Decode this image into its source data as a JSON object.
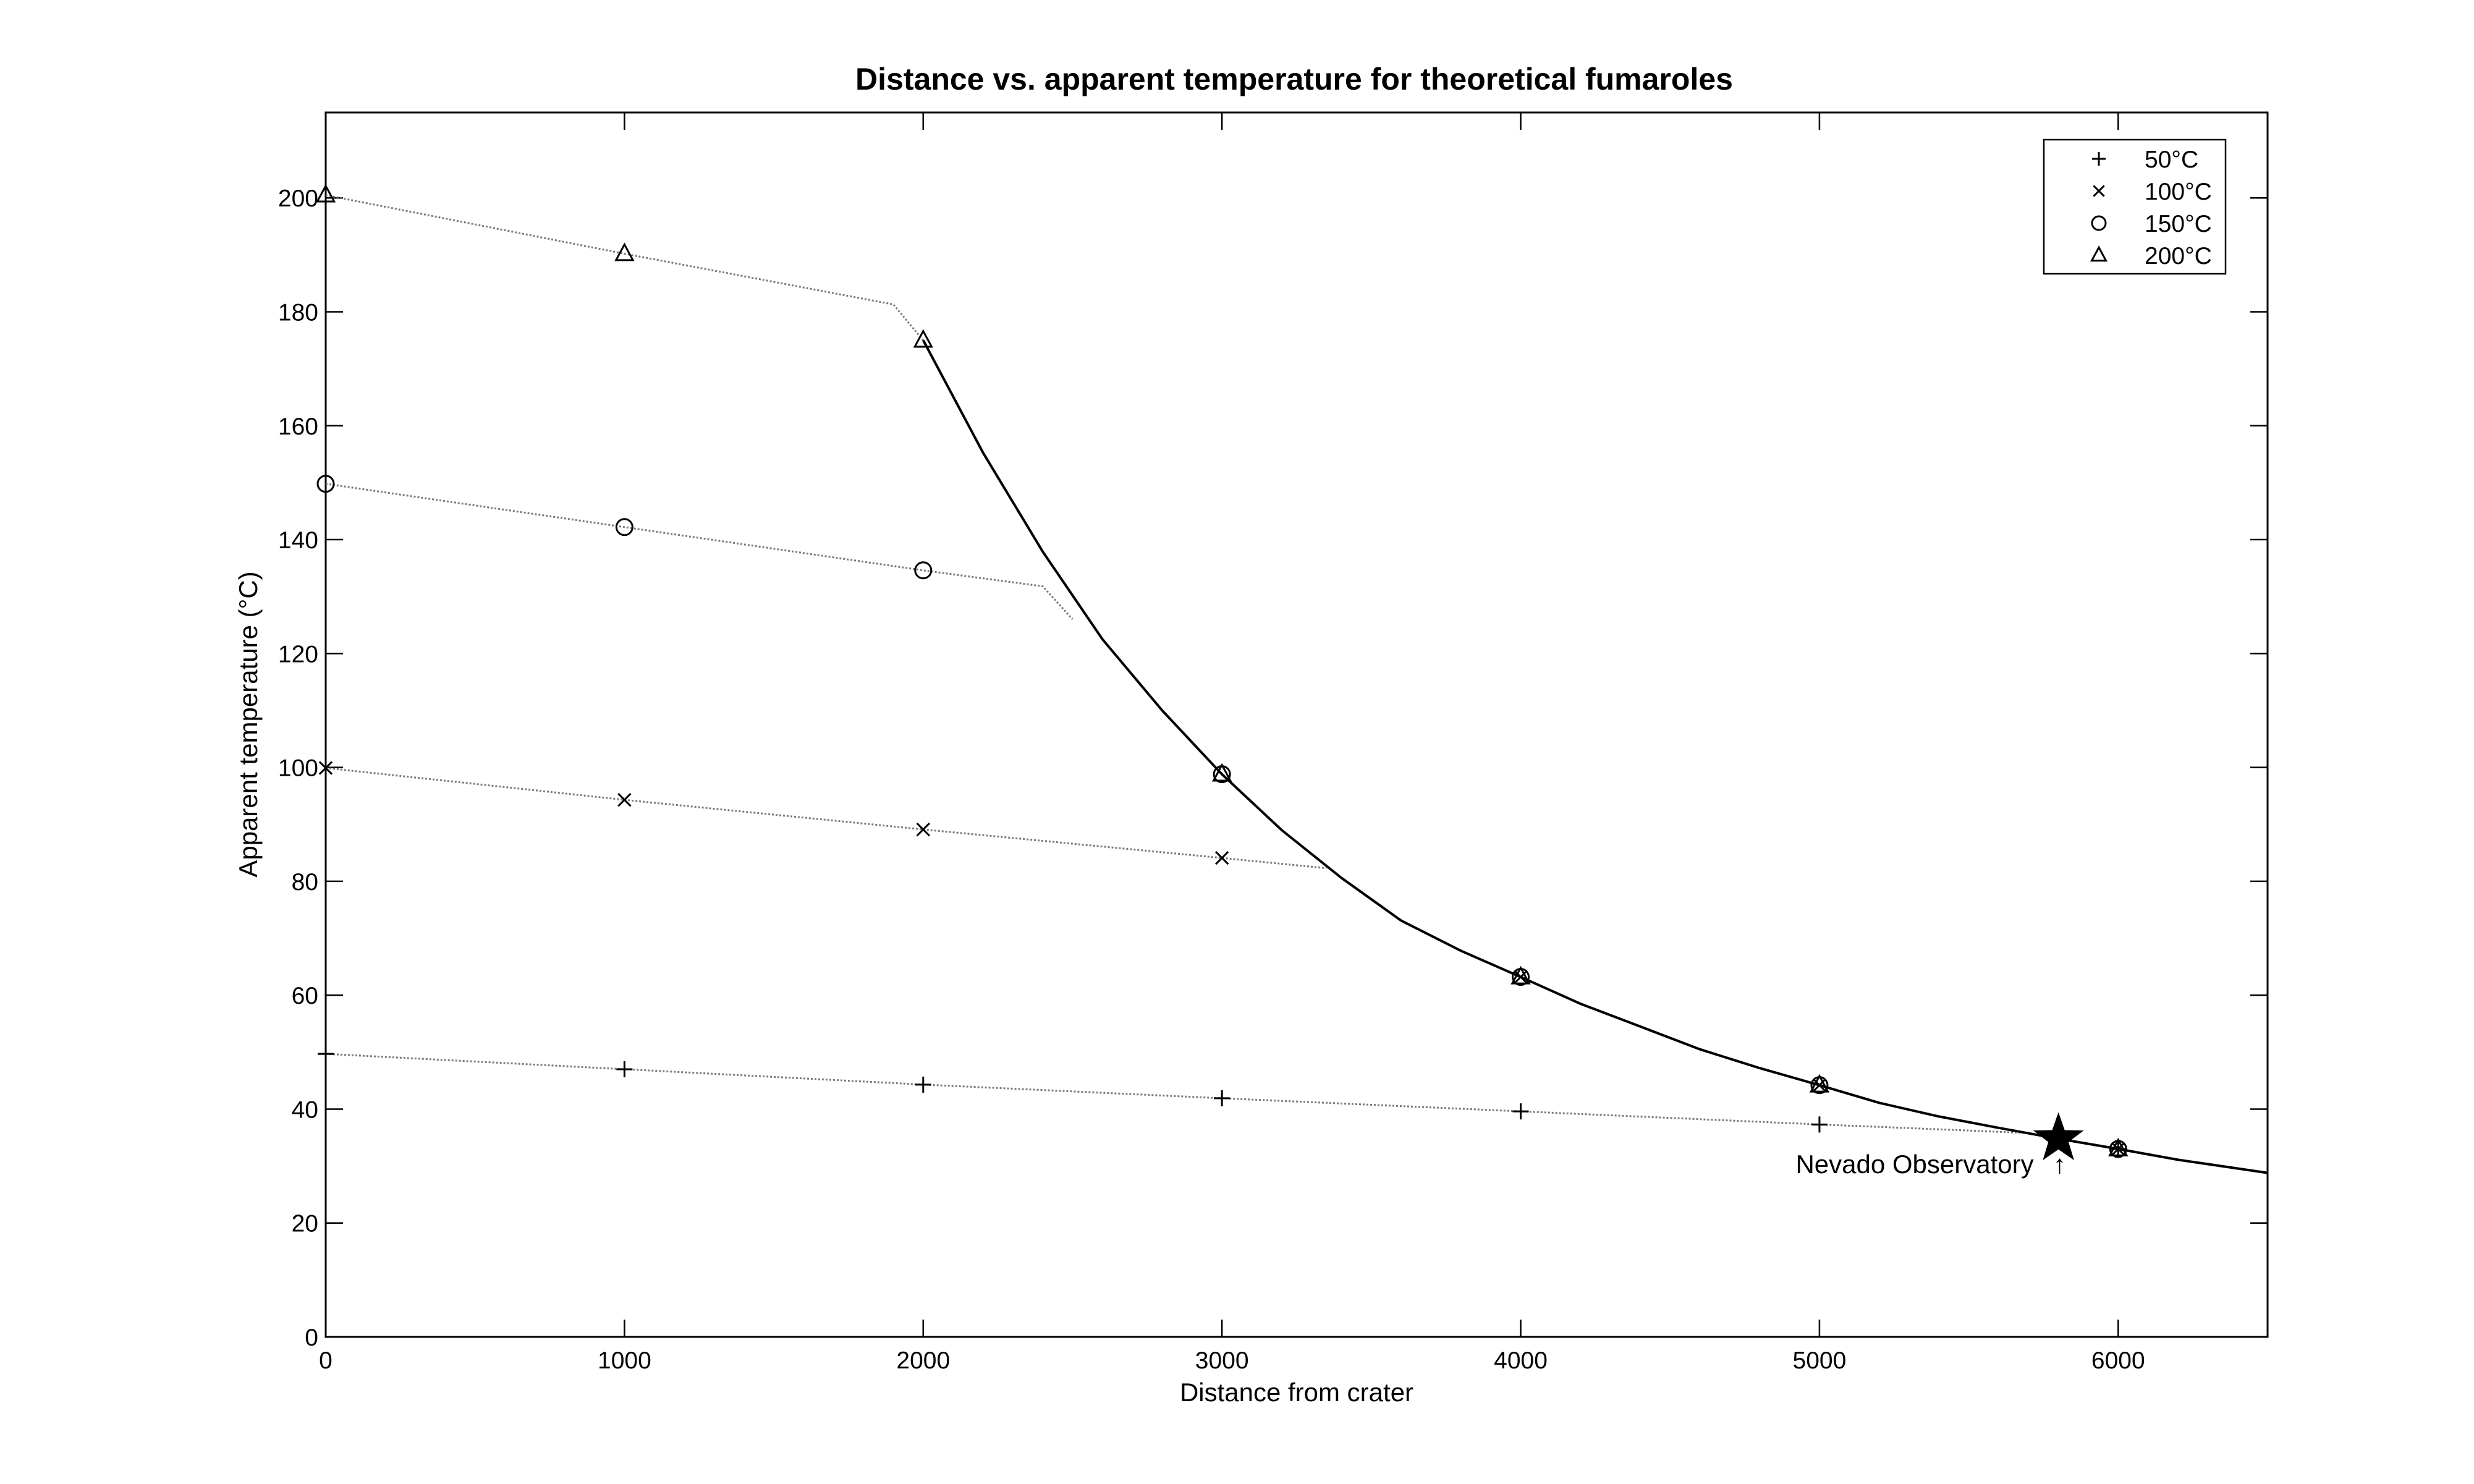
{
  "chart_data": {
    "type": "line",
    "title": "Distance vs. apparent temperature for theoretical fumaroles",
    "xlabel": "Distance from crater",
    "ylabel": "Apparent temperature (°C)",
    "xlim": [
      0,
      6500
    ],
    "ylim": [
      0,
      215
    ],
    "xticks": [
      0,
      1000,
      2000,
      3000,
      4000,
      5000,
      6000
    ],
    "yticks": [
      0,
      20,
      40,
      60,
      80,
      100,
      120,
      140,
      160,
      180,
      200
    ],
    "grid": false,
    "legend_position": "top-right",
    "series": [
      {
        "name": "50°C",
        "marker": "plus",
        "x": [
          0,
          1000,
          2000,
          3000,
          4000,
          5000,
          6000
        ],
        "y": [
          49.7,
          47.0,
          44.3,
          41.9,
          39.6,
          37.3,
          33.0
        ]
      },
      {
        "name": "100°C",
        "marker": "x",
        "x": [
          0,
          1000,
          2000,
          3000,
          4000,
          5000,
          6000
        ],
        "y": [
          99.9,
          94.3,
          89.1,
          84.1,
          63.2,
          44.2,
          33.0
        ]
      },
      {
        "name": "150°C",
        "marker": "circle",
        "x": [
          0,
          1000,
          2000,
          3000,
          4000,
          5000,
          6000
        ],
        "y": [
          149.8,
          142.2,
          134.6,
          98.8,
          63.2,
          44.2,
          33.0
        ]
      },
      {
        "name": "200°C",
        "marker": "triangle",
        "x": [
          0,
          1000,
          2000,
          3000,
          4000,
          5000,
          6000
        ],
        "y": [
          200.5,
          190.2,
          175.0,
          98.8,
          63.2,
          44.2,
          33.0
        ]
      }
    ],
    "curves": [
      {
        "style": "dotted",
        "x": [
          0,
          1000,
          2000,
          3000,
          4000,
          5000,
          5700
        ],
        "y": [
          49.7,
          47.0,
          44.3,
          41.9,
          39.6,
          37.3,
          35.8
        ]
      },
      {
        "style": "dotted",
        "x": [
          0,
          1000,
          2000,
          3000,
          3350
        ],
        "y": [
          99.9,
          94.3,
          89.1,
          84.1,
          82.3
        ]
      },
      {
        "style": "dotted",
        "x": [
          0,
          1000,
          2000,
          2400,
          2500
        ],
        "y": [
          149.8,
          142.2,
          134.6,
          131.8,
          126.0
        ]
      },
      {
        "style": "dotted",
        "x": [
          0,
          1000,
          1900,
          2000
        ],
        "y": [
          200.5,
          190.2,
          181.3,
          175.0
        ]
      },
      {
        "style": "solid",
        "x": [
          2000,
          2200,
          2400,
          2600,
          2800,
          3000,
          3200,
          3400,
          3600,
          3800,
          4000,
          4200,
          4400,
          4600,
          4800,
          5000,
          5200,
          5400,
          5600,
          5800,
          6000,
          6200,
          6500
        ],
        "y": [
          175.0,
          155.3,
          137.9,
          122.5,
          110.0,
          98.8,
          89.0,
          80.6,
          73.1,
          67.8,
          63.2,
          58.5,
          54.5,
          50.5,
          47.2,
          44.2,
          41.1,
          38.7,
          36.7,
          34.8,
          33.0,
          31.1,
          28.8
        ]
      }
    ],
    "highlight": {
      "marker": "star",
      "x": 5800,
      "y": 34.8
    },
    "annotations": [
      {
        "text": "Nevado Observatory",
        "x": 5800,
        "y": 24,
        "arrow": "↑"
      }
    ]
  }
}
